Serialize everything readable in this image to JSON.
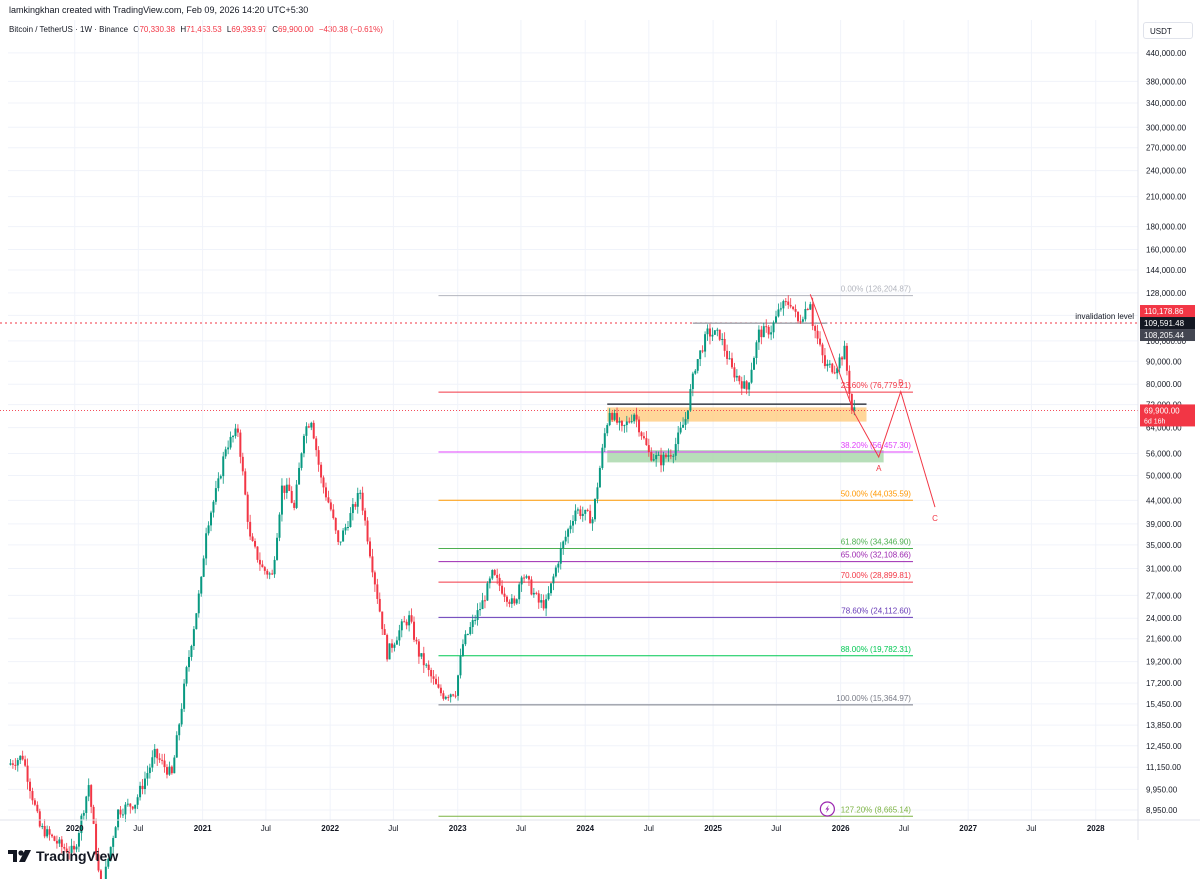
{
  "header": {
    "credit": "lamkingkhan created with TradingView.com, Feb 09, 2026 14:20 UTC+5:30"
  },
  "legend": {
    "symbol": "Bitcoin / TetherUS · 1W · Binance",
    "open_label": "O",
    "open": "70,330.38",
    "high_label": "H",
    "high": "71,453.53",
    "low_label": "L",
    "low": "69,393.97",
    "close_label": "C",
    "close": "69,900.00",
    "change": "−430.38 (−0.61%)"
  },
  "currency": "USDT",
  "brand": {
    "name": "TradingView",
    "logo_icon": "tradingview-logo-icon"
  },
  "colors": {
    "up": "#089981",
    "down": "#f23645",
    "grid": "#f0f3fa",
    "axis_text": "#131722"
  },
  "chart_data": {
    "type": "candlestick",
    "y_scale": "log",
    "ylim": [
      8500,
      470000
    ],
    "xlim": [
      "2019-06-24",
      "2028-05-01"
    ],
    "y_ticks": [
      "440,000.00",
      "380,000.00",
      "340,000.00",
      "300,000.00",
      "270,000.00",
      "240,000.00",
      "210,000.00",
      "180,000.00",
      "160,000.00",
      "144,000.00",
      "128,000.00",
      "114,000.00",
      "100,000.00",
      "90,000.00",
      "80,000.00",
      "72,000.00",
      "64,000.00",
      "56,000.00",
      "50,000.00",
      "44,000.00",
      "39,000.00",
      "35,000.00",
      "31,000.00",
      "27,000.00",
      "24,000.00",
      "21,600.00",
      "19,200.00",
      "17,200.00",
      "15,450.00",
      "13,850.00",
      "12,450.00",
      "11,150.00",
      "9,950.00",
      "8,950.00"
    ],
    "x_ticks": [
      {
        "label": "2020",
        "date": "2020-01-01",
        "bold": true
      },
      {
        "label": "Jul",
        "date": "2020-07-01",
        "bold": false
      },
      {
        "label": "2021",
        "date": "2021-01-01",
        "bold": true
      },
      {
        "label": "Jul",
        "date": "2021-07-01",
        "bold": false
      },
      {
        "label": "2022",
        "date": "2022-01-01",
        "bold": true
      },
      {
        "label": "Jul",
        "date": "2022-07-01",
        "bold": false
      },
      {
        "label": "2023",
        "date": "2023-01-01",
        "bold": true
      },
      {
        "label": "Jul",
        "date": "2023-07-01",
        "bold": false
      },
      {
        "label": "2024",
        "date": "2024-01-01",
        "bold": true
      },
      {
        "label": "Jul",
        "date": "2024-07-01",
        "bold": false
      },
      {
        "label": "2025",
        "date": "2025-01-01",
        "bold": true
      },
      {
        "label": "Jul",
        "date": "2025-07-01",
        "bold": false
      },
      {
        "label": "2026",
        "date": "2026-01-01",
        "bold": true
      },
      {
        "label": "Jul",
        "date": "2026-07-01",
        "bold": false
      },
      {
        "label": "2027",
        "date": "2027-01-01",
        "bold": true
      },
      {
        "label": "Jul",
        "date": "2027-07-01",
        "bold": false
      },
      {
        "label": "2028",
        "date": "2028-01-01",
        "bold": true
      }
    ],
    "price_path": [
      [
        "2019-06-24",
        11300
      ],
      [
        "2019-08-05",
        11800
      ],
      [
        "2019-09-23",
        8200
      ],
      [
        "2019-11-25",
        7400
      ],
      [
        "2019-12-30",
        7200
      ],
      [
        "2020-02-10",
        10200
      ],
      [
        "2020-03-16",
        5800
      ],
      [
        "2020-05-04",
        8900
      ],
      [
        "2020-06-22",
        9300
      ],
      [
        "2020-08-17",
        11900
      ],
      [
        "2020-10-05",
        10700
      ],
      [
        "2020-11-16",
        18300
      ],
      [
        "2020-12-28",
        29000
      ],
      [
        "2021-01-11",
        38000
      ],
      [
        "2021-02-15",
        48000
      ],
      [
        "2021-03-08",
        58000
      ],
      [
        "2021-04-12",
        63000
      ],
      [
        "2021-05-17",
        36000
      ],
      [
        "2021-06-21",
        31000
      ],
      [
        "2021-07-19",
        29800
      ],
      [
        "2021-08-16",
        47000
      ],
      [
        "2021-09-06",
        46000
      ],
      [
        "2021-09-20",
        42000
      ],
      [
        "2021-10-18",
        63000
      ],
      [
        "2021-11-08",
        67000
      ],
      [
        "2021-12-06",
        49000
      ],
      [
        "2022-01-03",
        42000
      ],
      [
        "2022-01-24",
        35000
      ],
      [
        "2022-03-28",
        46000
      ],
      [
        "2022-05-09",
        29000
      ],
      [
        "2022-06-13",
        20000
      ],
      [
        "2022-07-25",
        23000
      ],
      [
        "2022-08-15",
        24000
      ],
      [
        "2022-09-12",
        20000
      ],
      [
        "2022-11-07",
        16500
      ],
      [
        "2022-11-21",
        16200
      ],
      [
        "2022-12-26",
        16500
      ],
      [
        "2023-01-16",
        21000
      ],
      [
        "2023-03-13",
        26000
      ],
      [
        "2023-04-10",
        30000
      ],
      [
        "2023-06-12",
        25500
      ],
      [
        "2023-07-03",
        30500
      ],
      [
        "2023-08-21",
        26000
      ],
      [
        "2023-09-11",
        25800
      ],
      [
        "2023-10-23",
        34000
      ],
      [
        "2023-12-04",
        42000
      ],
      [
        "2024-01-22",
        40000
      ],
      [
        "2024-02-26",
        62000
      ],
      [
        "2024-03-11",
        70000
      ],
      [
        "2024-04-15",
        63000
      ],
      [
        "2024-05-20",
        69000
      ],
      [
        "2024-07-01",
        56000
      ],
      [
        "2024-08-05",
        54000
      ],
      [
        "2024-09-09",
        57000
      ],
      [
        "2024-10-14",
        67000
      ],
      [
        "2024-11-11",
        88000
      ],
      [
        "2024-12-16",
        104000
      ],
      [
        "2025-01-20",
        103000
      ],
      [
        "2025-02-24",
        86000
      ],
      [
        "2025-04-07",
        78000
      ],
      [
        "2025-05-12",
        104000
      ],
      [
        "2025-06-16",
        106000
      ],
      [
        "2025-07-14",
        119000
      ],
      [
        "2025-08-11",
        122000
      ],
      [
        "2025-09-01",
        110000
      ],
      [
        "2025-10-06",
        123000
      ],
      [
        "2025-10-13",
        110000
      ],
      [
        "2025-11-17",
        88000
      ],
      [
        "2025-12-15",
        87000
      ],
      [
        "2026-01-12",
        95000
      ],
      [
        "2026-02-02",
        70000
      ],
      [
        "2026-02-09",
        69900
      ]
    ],
    "fib_levels": [
      {
        "label": "0.00% (126,204.87)",
        "price": 126204.87,
        "color": "#b2b5be"
      },
      {
        "label": "23.60% (76,779.21)",
        "price": 76779.21,
        "color": "#f23645"
      },
      {
        "label": "38.20% (56,457.30)",
        "price": 56457.3,
        "color": "#e040fb"
      },
      {
        "label": "50.00% (44,035.59)",
        "price": 44035.59,
        "color": "#ff9800"
      },
      {
        "label": "61.80% (34,346.90)",
        "price": 34346.9,
        "color": "#4caf50"
      },
      {
        "label": "65.00% (32,108.66)",
        "price": 32108.66,
        "color": "#9c27b0"
      },
      {
        "label": "70.00% (28,899.81)",
        "price": 28899.81,
        "color": "#f23645"
      },
      {
        "label": "78.60% (24,112.60)",
        "price": 24112.6,
        "color": "#673ab7"
      },
      {
        "label": "88.00% (19,782.31)",
        "price": 19782.31,
        "color": "#00c853"
      },
      {
        "label": "100.00% (15,364.97)",
        "price": 15364.97,
        "color": "#787b86"
      },
      {
        "label": "127.20% (8,665.14)",
        "price": 8665.14,
        "color": "#7cb342"
      }
    ],
    "fib_start": "2022-11-07",
    "fib_end": "2026-07-27",
    "invalidation": {
      "label": "invalidation level",
      "price": 109591.48
    },
    "price_tags": [
      {
        "text": "110,178.86",
        "price": 110178.86,
        "bg": "#f23645",
        "fg": "#ffffff"
      },
      {
        "text": "109,591.48",
        "price": 109591.48,
        "bg": "#131722",
        "fg": "#ffffff"
      },
      {
        "text": "108,205.44",
        "price": 108205.44,
        "bg": "#434651",
        "fg": "#ffffff"
      }
    ],
    "last_price": {
      "text": "69,900.00",
      "countdown": "6d 16h",
      "price": 69900
    },
    "zones": [
      {
        "name": "orange-zone",
        "start": "2024-03-04",
        "end": "2026-03-16",
        "low": 66000,
        "high": 71000,
        "color": "#ffcc80"
      },
      {
        "name": "green-zone",
        "start": "2024-03-04",
        "end": "2026-05-04",
        "low": 53500,
        "high": 57000,
        "color": "#a5d6a7"
      }
    ],
    "support_line": {
      "start": "2024-03-04",
      "end": "2026-03-16",
      "price": 72200
    },
    "range_line": {
      "start": "2024-11-04",
      "end": "2025-11-24",
      "price": 109500
    },
    "waves": [
      {
        "label": "",
        "date": "2025-10-06",
        "price": 127000
      },
      {
        "label": "",
        "date": "2026-02-09",
        "price": 69000
      },
      {
        "label": "A",
        "date": "2026-04-20",
        "price": 55000
      },
      {
        "label": "B",
        "date": "2026-06-22",
        "price": 77000
      },
      {
        "label": "C",
        "date": "2026-09-28",
        "price": 42500
      }
    ]
  }
}
